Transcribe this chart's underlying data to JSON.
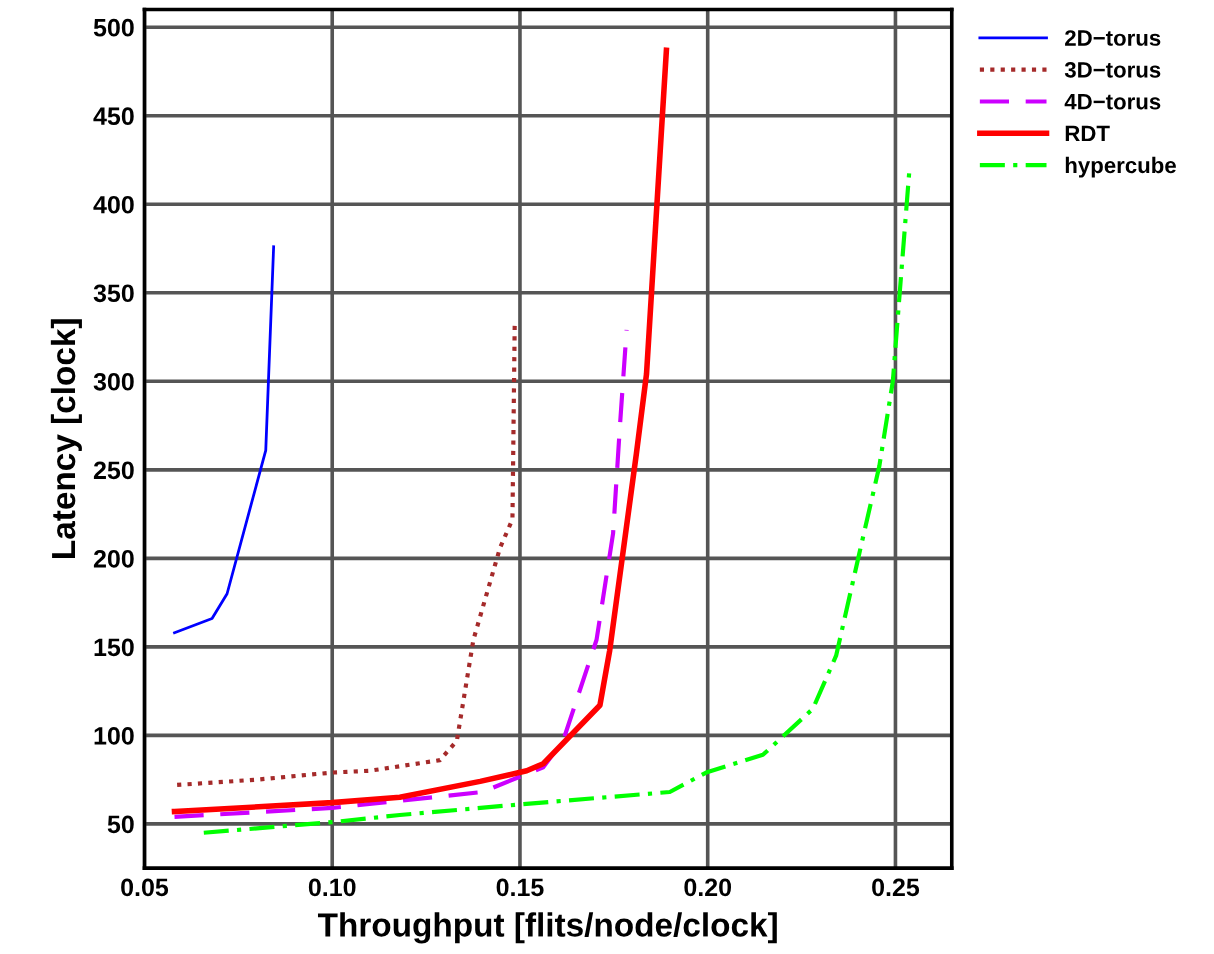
{
  "chart_data": {
    "type": "line",
    "xlabel": "Throughput [flits/node/clock]",
    "ylabel": "Latency [clock]",
    "xlim": [
      0.05,
      0.265
    ],
    "xticks": [
      {
        "value": 0.05,
        "label": "0.05"
      },
      {
        "value": 0.1,
        "label": "0.10"
      },
      {
        "value": 0.15,
        "label": "0.15"
      },
      {
        "value": 0.2,
        "label": "0.20"
      },
      {
        "value": 0.25,
        "label": "0.25"
      }
    ],
    "ylim": [
      25,
      510
    ],
    "yticks": [
      50,
      100,
      150,
      200,
      250,
      300,
      350,
      400,
      450,
      500
    ],
    "grid": true,
    "legend": "top right",
    "marker": "none",
    "series": [
      {
        "name": "2D−torus",
        "color": "#0000ff",
        "line_style": "solid",
        "x": [
          0.058,
          0.068,
          0.072,
          0.0823,
          0.0844
        ],
        "values": [
          158,
          166,
          180,
          261,
          376
        ]
      },
      {
        "name": "3D−torus",
        "color": "#a52a2a",
        "line_style": "dotted",
        "x": [
          0.0587,
          0.08,
          0.1,
          0.11,
          0.1287,
          0.1332,
          0.1376,
          0.1447,
          0.148,
          0.1486
        ],
        "values": [
          72,
          75,
          79,
          80,
          86,
          97,
          154,
          206,
          222,
          332
        ]
      },
      {
        "name": "4D−torus",
        "color": "#cc00ff",
        "line_style": "dashed",
        "x": [
          0.058,
          0.1,
          0.14,
          0.1562,
          0.1615,
          0.1704,
          0.1748,
          0.1766,
          0.1784
        ],
        "values": [
          54,
          59,
          68,
          82,
          97,
          154,
          214,
          274,
          329
        ]
      },
      {
        "name": "RDT",
        "color": "#ff0000",
        "line_style": "solid",
        "x": [
          0.058,
          0.1,
          0.118,
          0.1394,
          0.1518,
          0.1562,
          0.1713,
          0.1739,
          0.181,
          0.1837,
          0.189
        ],
        "values": [
          57,
          62,
          65,
          74,
          80,
          84,
          117,
          148,
          259,
          304,
          487
        ]
      },
      {
        "name": "hypercube",
        "color": "#00ff00",
        "line_style": "dashdot",
        "x": [
          0.0658,
          0.1,
          0.118,
          0.15,
          0.1899,
          0.1996,
          0.2147,
          0.228,
          0.2342,
          0.2404,
          0.2457,
          0.2493,
          0.2511,
          0.2537
        ],
        "values": [
          45,
          51,
          55,
          61,
          68,
          79,
          89,
          115,
          145,
          203,
          252,
          300,
          349,
          419
        ]
      }
    ]
  }
}
